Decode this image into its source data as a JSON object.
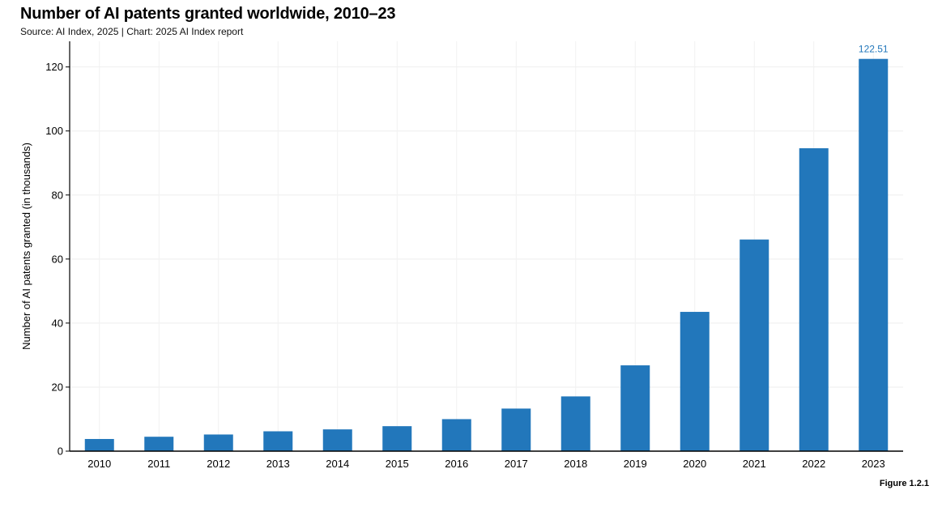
{
  "header": {
    "title": "Number of AI patents granted worldwide, 2010–23",
    "subtitle": "Source: AI Index, 2025 | Chart: 2025 AI Index report"
  },
  "footer": {
    "figure_label": "Figure 1.2.1"
  },
  "chart_data": {
    "type": "bar",
    "title": "Number of AI patents granted worldwide, 2010–23",
    "xlabel": "",
    "ylabel": "Number of AI patents granted (in thousands)",
    "categories": [
      "2010",
      "2011",
      "2012",
      "2013",
      "2014",
      "2015",
      "2016",
      "2017",
      "2018",
      "2019",
      "2020",
      "2021",
      "2022",
      "2023"
    ],
    "values": [
      3.8,
      4.5,
      5.2,
      6.2,
      6.8,
      7.8,
      10.0,
      13.3,
      17.1,
      26.8,
      43.5,
      66.1,
      94.6,
      122.51
    ],
    "data_labels": [
      {
        "category": "2023",
        "text": "122.51"
      }
    ],
    "ylim": [
      0,
      128
    ],
    "yticks": [
      0,
      20,
      40,
      60,
      80,
      100,
      120
    ],
    "grid": true,
    "bar_color": "#2277bb",
    "label_color": "#2277bb"
  }
}
